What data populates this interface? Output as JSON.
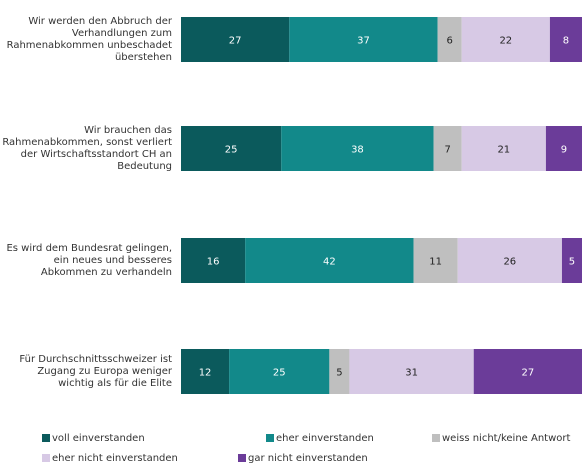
{
  "chart_data": {
    "type": "stacked-bar-horizontal",
    "categories": [
      "Wir werden den Abbruch der Verhandlungen zum Rahmenabkommen unbeschadet überstehen",
      "Wir brauchen das Rahmenabkommen, sonst verliert der Wirtschaftsstandort CH an Bedeutung",
      "Es wird dem Bundesrat gelingen, ein neues und besseres Abkommen zu verhandeln",
      "Für Durchschnittsschweizer ist Zugang zu Europa weniger wichtig als für die Elite"
    ],
    "xlim": [
      0,
      100
    ],
    "series": [
      {
        "name": "voll einverstanden",
        "color": "#0b5a5c",
        "values": [
          27,
          25,
          16,
          12
        ]
      },
      {
        "name": "eher einverstanden",
        "color": "#12898a",
        "values": [
          37,
          38,
          42,
          25
        ]
      },
      {
        "name": "weiss nicht/keine Antwort",
        "color": "#bfbfbf",
        "values": [
          6,
          7,
          11,
          5
        ]
      },
      {
        "name": "eher nicht einverstanden",
        "color": "#d7c9e5",
        "values": [
          22,
          21,
          26,
          31
        ]
      },
      {
        "name": "gar nicht einverstanden",
        "color": "#6b3c99",
        "values": [
          8,
          9,
          5,
          27
        ]
      }
    ]
  }
}
